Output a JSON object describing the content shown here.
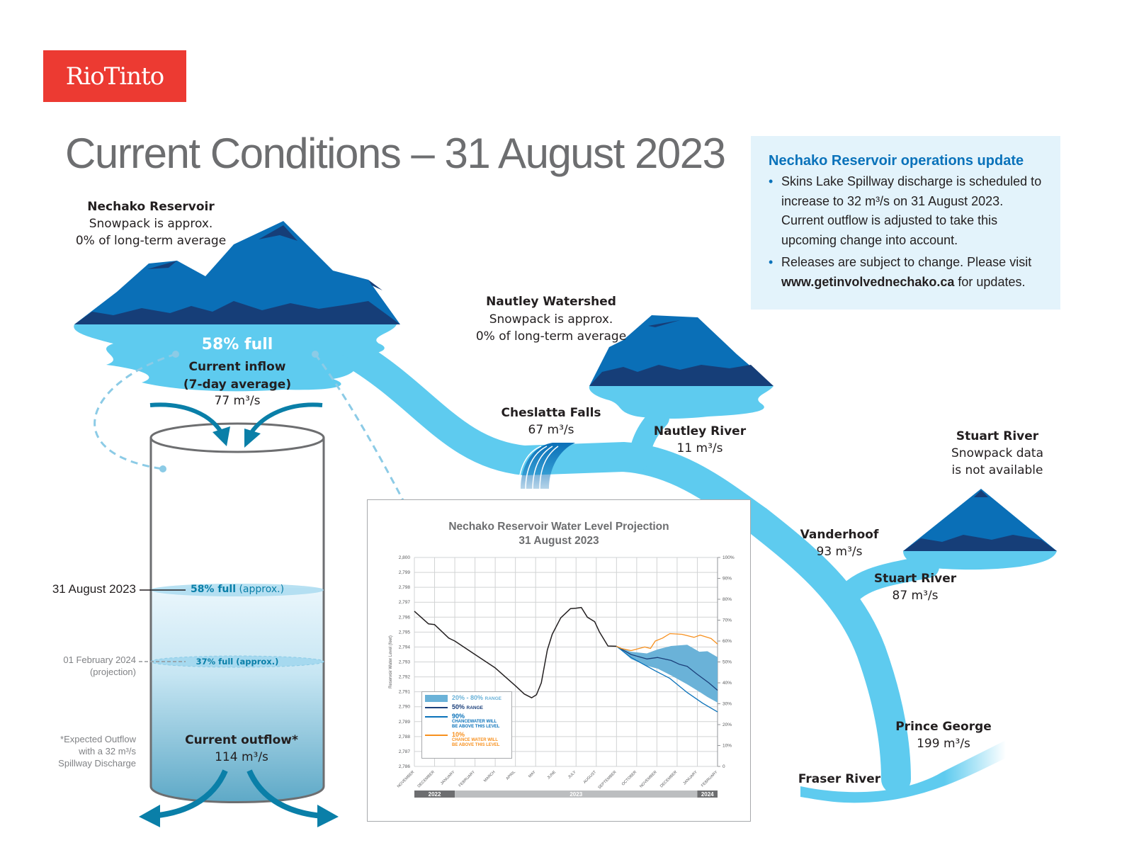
{
  "logo": {
    "text": "RioTinto"
  },
  "title": "Current Conditions – 31 August 2023",
  "colors": {
    "brand_red": "#ec3a32",
    "river": "#5ecbef",
    "mountain": "#0a6fb7",
    "mountain_dark": "#163e78",
    "title_gray": "#6d6e70",
    "accent_blue": "#0a72ba",
    "projection_orange": "#f7901e"
  },
  "nechako_reservoir": {
    "name": "Nechako Reservoir",
    "snowpack_line1": "Snowpack is approx.",
    "snowpack_line2": "0% of long-term average",
    "percent_full": "58% full",
    "inflow_label1": "Current inflow",
    "inflow_label2": "(7-day average)",
    "inflow_value": "77 m³/s"
  },
  "nautley_watershed": {
    "name": "Nautley Watershed",
    "line1": "Snowpack is approx.",
    "line2": "0% of long-term average"
  },
  "cheslatta_falls": {
    "name": "Cheslatta Falls",
    "value": "67 m³/s"
  },
  "nautley_river": {
    "name": "Nautley River",
    "value": "11 m³/s"
  },
  "stuart_watershed": {
    "name": "Stuart River",
    "line1": "Snowpack data",
    "line2": "is not available"
  },
  "vanderhoof": {
    "name": "Vanderhoof",
    "value": "93 m³/s"
  },
  "stuart_river": {
    "name": "Stuart River",
    "value": "87 m³/s"
  },
  "prince_george": {
    "name": "Prince George",
    "value": "199 m³/s"
  },
  "fraser_river": {
    "name": "Fraser River"
  },
  "cylinder": {
    "current_date": "31 August 2023",
    "current_level_bold": "58% full",
    "current_level_note": " (approx.)",
    "current_fraction": 0.58,
    "projection_date": "01 February 2024",
    "projection_note": "(projection)",
    "projection_level": "37% full (approx.)",
    "projection_fraction": 0.37,
    "outflow_label": "Current outflow*",
    "outflow_value": "114 m³/s",
    "footnote1": "*Expected Outflow",
    "footnote2": "with a 32 m³/s",
    "footnote3": "Spillway Discharge"
  },
  "info_box": {
    "heading": "Nechako Reservoir operations update",
    "bullet1": "Skins Lake Spillway discharge is scheduled to increase to 32 m³/s on 31 August 2023. Current outflow is adjusted to take this upcoming change into account.",
    "bullet2_prefix": "Releases are subject to change. Please visit ",
    "bullet2_link": "www.getinvolvednechako.ca",
    "bullet2_suffix": " for updates."
  },
  "chart_data": {
    "type": "line",
    "title": "Nechako Reservoir Water Level Projection",
    "subtitle": "31 August 2023",
    "ylabel": "Reservoir Water Level (feet)",
    "ylim": [
      2786,
      2800
    ],
    "yticks": [
      "2,786",
      "2,787",
      "2,788",
      "2,789",
      "2,790",
      "2,791",
      "2,792",
      "2,793",
      "2,794",
      "2,795",
      "2,796",
      "2,797",
      "2,798",
      "2,799",
      "2,800"
    ],
    "y2ticks": [
      "0",
      "10%",
      "20%",
      "30%",
      "40%",
      "50%",
      "60%",
      "70%",
      "80%",
      "90%",
      "100%"
    ],
    "xlim": [
      0,
      15
    ],
    "x_unit": "months since 1 November 2022",
    "xticks": [
      "NOVEMBER",
      "DECEMBER",
      "JANUARY",
      "FEBRUARY",
      "MARCH",
      "APRIL",
      "MAY",
      "JUNE",
      "JULY",
      "AUGUST",
      "SEPTEMBER",
      "OCTOBER",
      "NOVEMBER",
      "DECEMBER",
      "JANUARY",
      "FEBRUARY"
    ],
    "years": [
      {
        "label": "2022",
        "from": 0,
        "to": 2
      },
      {
        "label": "2023",
        "from": 2,
        "to": 14
      },
      {
        "label": "2024",
        "from": 14,
        "to": 15
      }
    ],
    "grid": true,
    "legend_position": "bottom-left",
    "series": [
      {
        "name": "Observed",
        "color": "#231f20",
        "x": [
          0,
          0.7,
          1.0,
          1.7,
          2,
          3,
          4,
          5,
          5.44,
          5.8,
          6.04,
          6.28,
          6.58,
          6.82,
          7.24,
          7.72,
          8.0,
          8.26,
          8.56,
          8.92,
          9.16,
          9.58,
          10
        ],
        "y": [
          2796.4,
          2795.55,
          2795.5,
          2794.6,
          2794.4,
          2793.5,
          2792.6,
          2791.4,
          2790.85,
          2790.6,
          2790.8,
          2791.6,
          2793.8,
          2794.85,
          2795.95,
          2796.57,
          2796.6,
          2796.65,
          2796.0,
          2795.7,
          2795.0,
          2794.07,
          2794.05
        ]
      },
      {
        "name": "50% range",
        "color": "#1b3f7a",
        "x": [
          10,
          10.72,
          11.5,
          12.04,
          12.7,
          13.1,
          13.5,
          13.97,
          14.57,
          15
        ],
        "y": [
          2794.05,
          2793.5,
          2793.2,
          2793.3,
          2793.1,
          2792.85,
          2792.7,
          2792.2,
          2791.6,
          2791.1
        ]
      },
      {
        "name": "90% chance water will be above this level",
        "color": "#0a72ba",
        "x": [
          10,
          10.72,
          11.92,
          12.64,
          13.5,
          14.26,
          15
        ],
        "y": [
          2794.05,
          2793.3,
          2792.4,
          2791.9,
          2790.95,
          2790.24,
          2789.65
        ]
      },
      {
        "name": "10% chance water will be above this level",
        "color": "#f7901e",
        "x": [
          10,
          10.24,
          10.72,
          11.4,
          11.68,
          11.92,
          12.28,
          12.64,
          13.24,
          13.84,
          14.14,
          14.68,
          15
        ],
        "y": [
          2794.05,
          2793.9,
          2793.76,
          2794.0,
          2793.9,
          2794.4,
          2794.6,
          2794.9,
          2794.85,
          2794.65,
          2794.8,
          2794.57,
          2794.2
        ]
      }
    ],
    "band": {
      "name": "20% - 80% range",
      "color": "#6ab2d8",
      "x": [
        10,
        10.72,
        11.5,
        12.04,
        12.7,
        13.5,
        14.1,
        14.5,
        15
      ],
      "upper": [
        2794.05,
        2793.68,
        2793.57,
        2793.84,
        2794.07,
        2794.15,
        2793.68,
        2793.72,
        2793.32
      ],
      "lower": [
        2794.05,
        2793.2,
        2792.74,
        2792.55,
        2792.1,
        2791.5,
        2791.0,
        2790.65,
        2790.28
      ]
    },
    "legend": {
      "band_pct": "20% - 80%",
      "band_word": "RANGE",
      "median_pct": "50%",
      "median_word": "RANGE",
      "p90_pct": "90%",
      "p90_line1": "CHANCEWATER WILL",
      "p90_line2": "BE ABOVE THIS LEVEL",
      "p10_pct": "10%",
      "p10_line1": "CHANCE WATER WILL",
      "p10_line2": "BE ABOVE THIS LEVEL"
    }
  }
}
